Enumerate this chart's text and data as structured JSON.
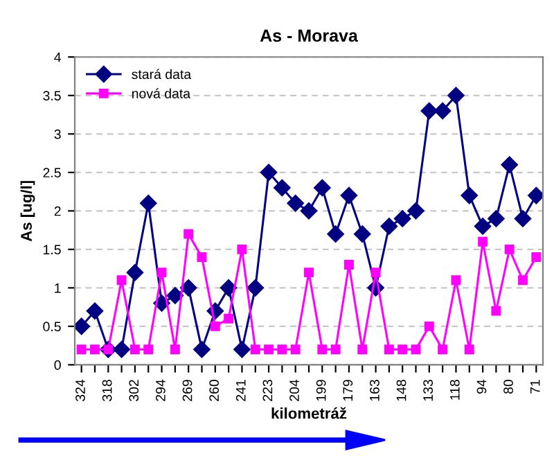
{
  "chart_data": {
    "type": "line",
    "title": "As - Morava",
    "xlabel": "kilometráž",
    "ylabel": "As [ug/l]",
    "categories": [
      "324",
      null,
      "318",
      null,
      "302",
      null,
      "294",
      null,
      "269",
      null,
      "260",
      null,
      "241",
      null,
      "223",
      null,
      "204",
      null,
      "199",
      null,
      "179",
      null,
      "163",
      null,
      "148",
      null,
      "133",
      null,
      "118",
      null,
      "94",
      null,
      "80",
      null,
      "71"
    ],
    "series": [
      {
        "name": "stará data",
        "color": "#000080",
        "marker": "diamond",
        "values": [
          0.5,
          0.7,
          0.2,
          0.2,
          1.2,
          2.1,
          0.8,
          0.9,
          1.0,
          0.2,
          0.7,
          1.0,
          0.2,
          1.0,
          2.5,
          2.3,
          2.1,
          2.0,
          2.3,
          1.7,
          2.2,
          1.7,
          1.0,
          1.8,
          1.9,
          2.0,
          3.3,
          3.3,
          3.5,
          2.2,
          1.8,
          1.9,
          2.6,
          1.9,
          2.2
        ]
      },
      {
        "name": "nová data",
        "color": "#ff00ff",
        "marker": "square",
        "values": [
          0.2,
          0.2,
          0.2,
          1.1,
          0.2,
          0.2,
          1.2,
          0.2,
          1.7,
          1.4,
          0.5,
          0.6,
          1.5,
          0.2,
          0.2,
          0.2,
          0.2,
          1.2,
          0.2,
          0.2,
          1.3,
          0.2,
          1.2,
          0.2,
          0.2,
          0.2,
          0.5,
          0.2,
          1.1,
          0.2,
          1.6,
          0.7,
          1.5,
          1.1,
          1.4
        ]
      }
    ],
    "ylim": [
      0,
      4
    ],
    "yticks": [
      0,
      0.5,
      1,
      1.5,
      2,
      2.5,
      3,
      3.5,
      4
    ],
    "grid": "y",
    "legend": "top left",
    "line_style": "solid"
  }
}
